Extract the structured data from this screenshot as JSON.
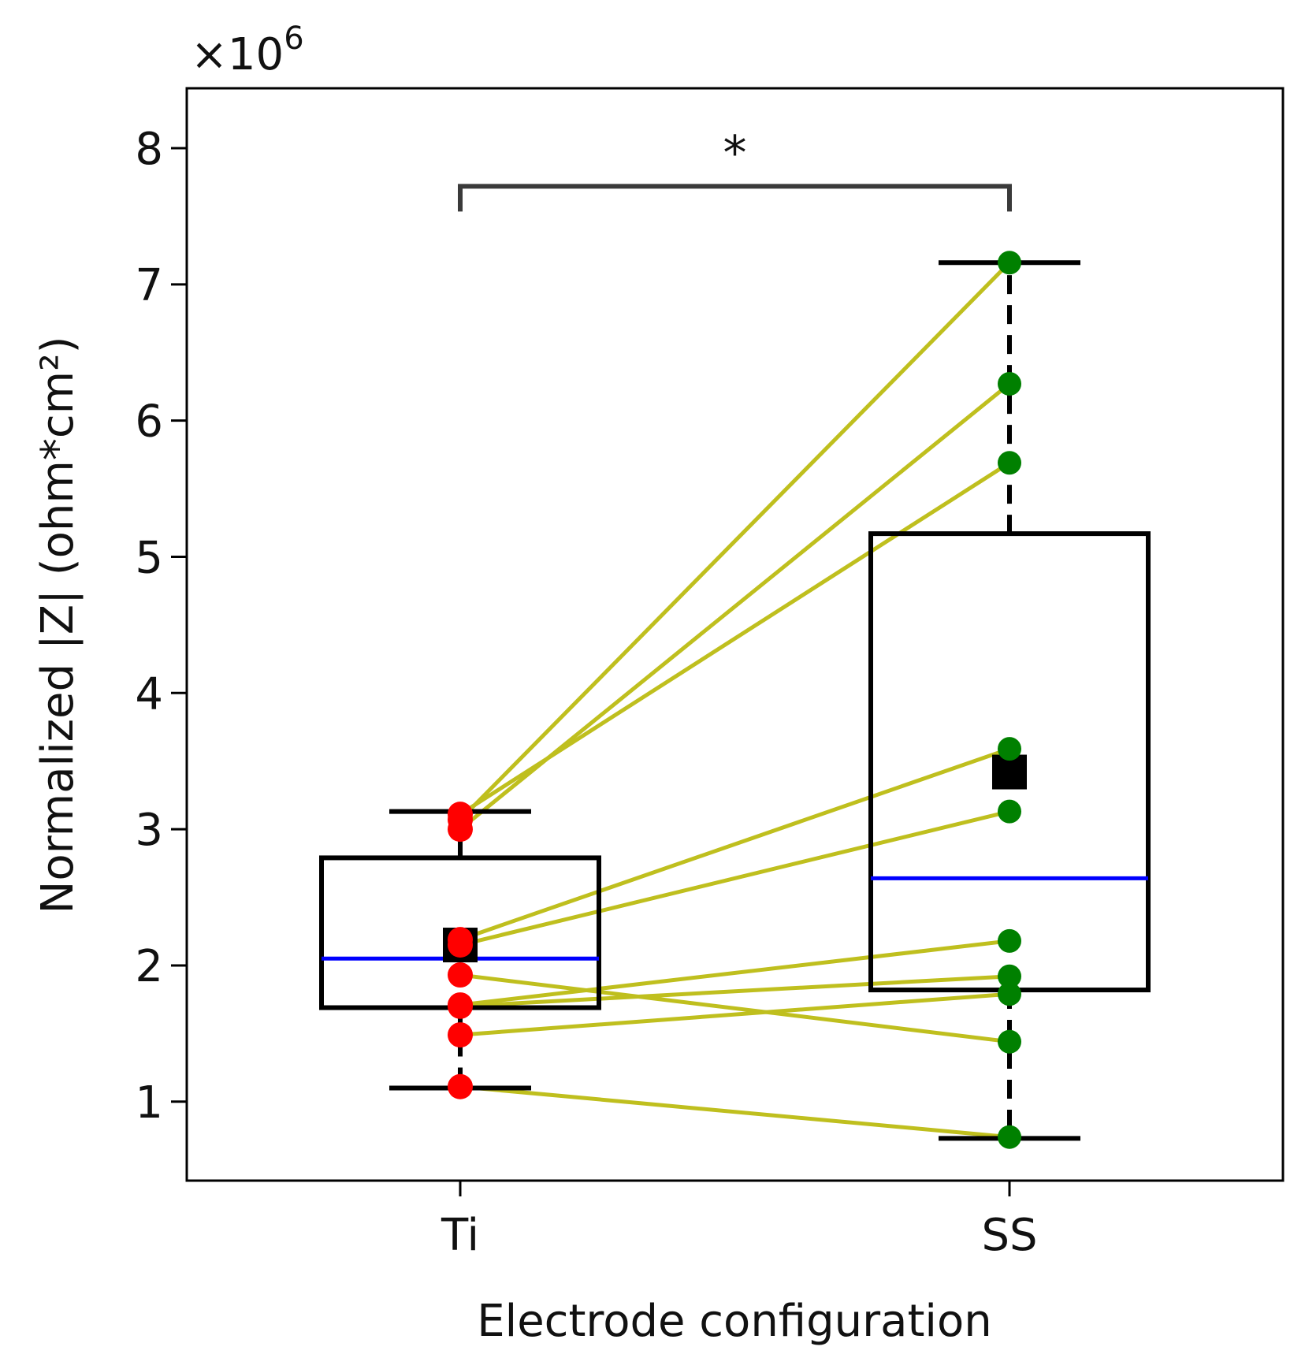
{
  "chart_data": {
    "type": "box",
    "title": "",
    "xlabel": "Electrode configuration",
    "ylabel": "Normalized |Z| (ohm*cm²)",
    "y_scale_label": "×10",
    "y_scale_exponent": "6",
    "ylim": [
      0.42,
      8.44
    ],
    "yticks": [
      1,
      2,
      3,
      4,
      5,
      6,
      7,
      8
    ],
    "ytick_labels": [
      "1",
      "2",
      "3",
      "4",
      "5",
      "6",
      "7",
      "8"
    ],
    "categories": [
      "Ti",
      "SS"
    ],
    "boxes": [
      {
        "name": "Ti",
        "whisker_low": 1.1,
        "q1": 1.69,
        "median": 2.05,
        "q3": 2.79,
        "whisker_high": 3.13,
        "mean": 2.15,
        "point_color": "#ff0000"
      },
      {
        "name": "SS",
        "whisker_low": 0.73,
        "q1": 1.82,
        "median": 2.64,
        "q3": 5.17,
        "whisker_high": 7.16,
        "mean": 3.42,
        "point_color": "#008000"
      }
    ],
    "pairs": [
      {
        "Ti": 3.07,
        "SS": 7.16
      },
      {
        "Ti": 3.0,
        "SS": 6.27
      },
      {
        "Ti": 3.11,
        "SS": 5.69
      },
      {
        "Ti": 2.19,
        "SS": 3.59
      },
      {
        "Ti": 2.15,
        "SS": 3.13
      },
      {
        "Ti": 1.71,
        "SS": 2.18
      },
      {
        "Ti": 1.7,
        "SS": 1.92
      },
      {
        "Ti": 1.49,
        "SS": 1.79
      },
      {
        "Ti": 1.93,
        "SS": 1.44
      },
      {
        "Ti": 1.11,
        "SS": 0.74
      }
    ],
    "significance": {
      "from": "Ti",
      "to": "SS",
      "label": "*",
      "y": 7.72
    },
    "colors": {
      "box": "#000000",
      "median": "#0000ff",
      "pair_line": "#bfbf1e",
      "bracket": "#3a3a3a",
      "mean_marker": "#000000"
    }
  }
}
